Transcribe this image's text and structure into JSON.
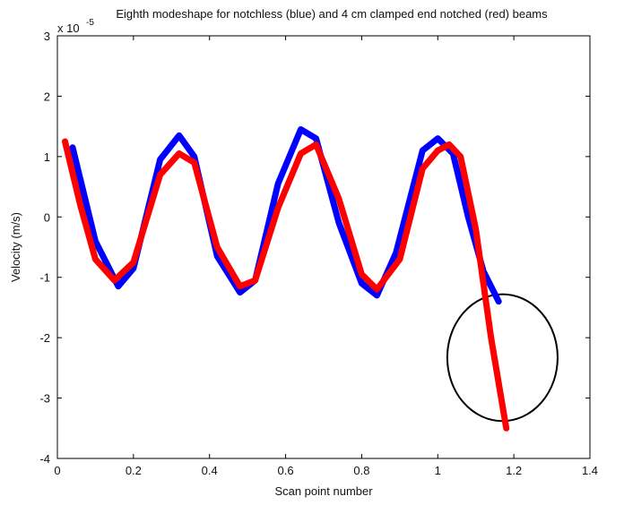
{
  "chart_data": {
    "type": "line",
    "title": "Eighth modeshape for notchless (blue) and 4 cm clamped end notched (red) beams",
    "xlabel": "Scan point number",
    "ylabel": "Velocity (m/s)",
    "y_exponent_label": "x 10",
    "y_exponent_power": "-5",
    "xlim": [
      0,
      1.4
    ],
    "ylim": [
      -4,
      3
    ],
    "xticks": [
      "0",
      "0.2",
      "0.4",
      "0.6",
      "0.8",
      "1",
      "1.2",
      "1.4"
    ],
    "yticks": [
      "-4",
      "-3",
      "-2",
      "-1",
      "0",
      "1",
      "2",
      "3"
    ],
    "grid": false,
    "colors": {
      "blue_series": "#0000ff",
      "red_series": "#ff0000",
      "annotation": "#000000"
    },
    "series": [
      {
        "color": "#0000ff",
        "x": [
          0.04,
          0.1,
          0.16,
          0.2,
          0.27,
          0.32,
          0.36,
          0.42,
          0.48,
          0.52,
          0.58,
          0.64,
          0.68,
          0.74,
          0.8,
          0.84,
          0.89,
          0.96,
          1.0,
          1.04,
          1.08,
          1.12,
          1.16
        ],
        "y": [
          1.15,
          -0.4,
          -1.15,
          -0.85,
          0.95,
          1.35,
          1.0,
          -0.65,
          -1.25,
          -1.05,
          0.55,
          1.45,
          1.3,
          -0.1,
          -1.1,
          -1.3,
          -0.6,
          1.1,
          1.3,
          1.05,
          0.0,
          -0.9,
          -1.4
        ]
      },
      {
        "color": "#ff0000",
        "x": [
          0.02,
          0.06,
          0.1,
          0.15,
          0.2,
          0.27,
          0.32,
          0.36,
          0.42,
          0.48,
          0.52,
          0.58,
          0.64,
          0.68,
          0.74,
          0.8,
          0.84,
          0.9,
          0.96,
          1.0,
          1.03,
          1.06,
          1.1,
          1.14,
          1.18
        ],
        "y": [
          1.25,
          0.2,
          -0.7,
          -1.05,
          -0.75,
          0.7,
          1.05,
          0.9,
          -0.5,
          -1.15,
          -1.05,
          0.15,
          1.05,
          1.2,
          0.3,
          -0.95,
          -1.2,
          -0.7,
          0.8,
          1.1,
          1.2,
          1.0,
          -0.2,
          -2.0,
          -3.5
        ]
      }
    ],
    "annotations": [
      {
        "type": "ellipse",
        "cx": 1.17,
        "cy": -2.33,
        "rx": 0.145,
        "ry": 1.05,
        "color": "#000000"
      }
    ]
  }
}
